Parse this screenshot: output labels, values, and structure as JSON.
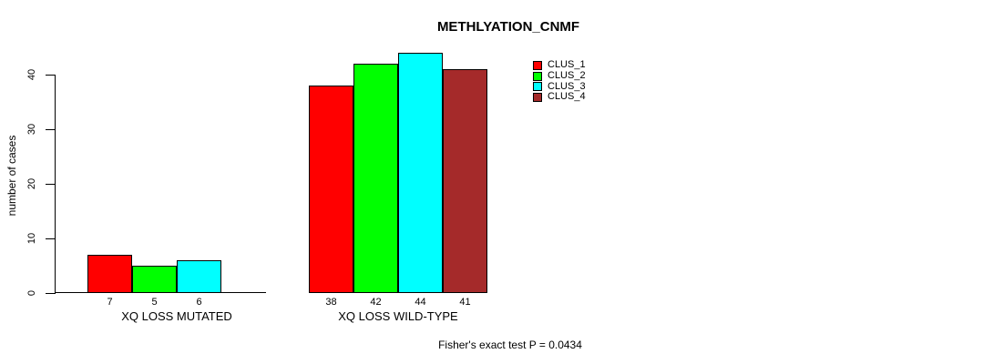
{
  "chart_data": {
    "type": "bar",
    "title": "METHLYATION_CNMF",
    "ylabel": "number of cases",
    "xlabel": "",
    "ylim": [
      0,
      44
    ],
    "yticks": [
      0,
      10,
      20,
      30,
      40
    ],
    "grid": false,
    "legend_position": "top-right",
    "series": [
      {
        "name": "CLUS_1",
        "color": "#FF0000"
      },
      {
        "name": "CLUS_2",
        "color": "#00FF00"
      },
      {
        "name": "CLUS_3",
        "color": "#00FFFF"
      },
      {
        "name": "CLUS_4",
        "color": "#A52A2A"
      }
    ],
    "groups": [
      {
        "label": "XQ LOSS MUTATED",
        "values": [
          7,
          5,
          6,
          0
        ],
        "bar_labels": [
          "7",
          "5",
          "6",
          ""
        ]
      },
      {
        "label": "XQ LOSS WILD-TYPE",
        "values": [
          38,
          42,
          44,
          41
        ],
        "bar_labels": [
          "38",
          "42",
          "44",
          "41"
        ]
      }
    ],
    "footnote": "Fisher's exact test P = 0.0434"
  },
  "colors": {
    "background": "#FFFFFF",
    "axis": "#000000",
    "text": "#000000"
  }
}
